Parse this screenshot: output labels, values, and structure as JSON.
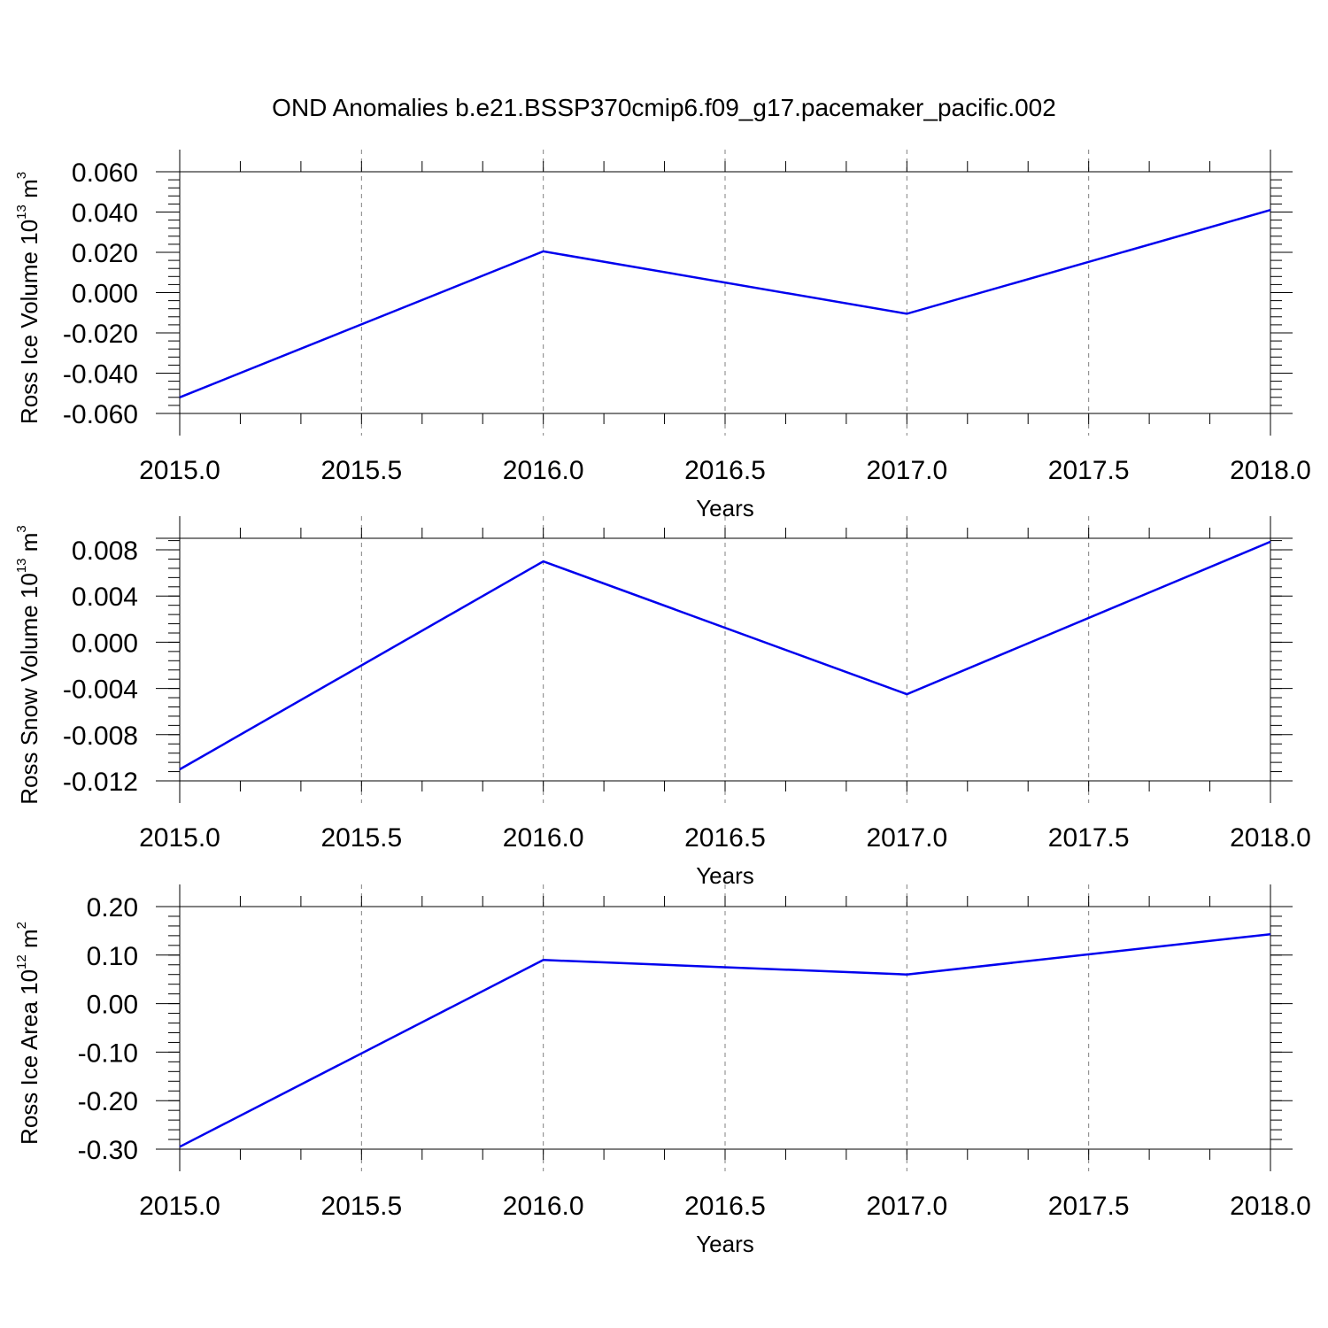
{
  "title": "OND Anomalies b.e21.BSSP370cmip6.f09_g17.pacemaker_pacific.002",
  "chart_data": [
    {
      "type": "line",
      "xlabel": "Years",
      "ylabel": "Ross Ice Volume 10",
      "ylabel_exp": "13",
      "ylabel_unit": " m",
      "ylabel_unit_exp": "3",
      "xlim": [
        2015.0,
        2018.0
      ],
      "ylim": [
        -0.06,
        0.06
      ],
      "grid": true,
      "xticks": [
        2015.0,
        2015.5,
        2016.0,
        2016.5,
        2017.0,
        2017.5,
        2018.0
      ],
      "xtick_labels": [
        "2015.0",
        "2015.5",
        "2016.0",
        "2016.5",
        "2017.0",
        "2017.5",
        "2018.0"
      ],
      "yticks": [
        0.06,
        0.04,
        0.02,
        0.0,
        -0.02,
        -0.04,
        -0.06
      ],
      "ytick_labels": [
        "0.060",
        "0.040",
        "0.020",
        "0.000",
        "-0.020",
        "-0.040",
        "-0.060"
      ],
      "series": [
        {
          "color": "#0000ee",
          "x": [
            2015,
            2016,
            2017,
            2018
          ],
          "y": [
            -0.052,
            0.0205,
            -0.0105,
            0.041
          ]
        }
      ]
    },
    {
      "type": "line",
      "xlabel": "Years",
      "ylabel": "Ross Snow Volume 10",
      "ylabel_exp": "13",
      "ylabel_unit": " m",
      "ylabel_unit_exp": "3",
      "xlim": [
        2015.0,
        2018.0
      ],
      "ylim": [
        -0.012,
        0.009
      ],
      "grid": true,
      "xticks": [
        2015.0,
        2015.5,
        2016.0,
        2016.5,
        2017.0,
        2017.5,
        2018.0
      ],
      "xtick_labels": [
        "2015.0",
        "2015.5",
        "2016.0",
        "2016.5",
        "2017.0",
        "2017.5",
        "2018.0"
      ],
      "yticks": [
        0.008,
        0.004,
        0.0,
        -0.004,
        -0.008,
        -0.012
      ],
      "ytick_labels": [
        "0.008",
        "0.004",
        "0.000",
        "-0.004",
        "-0.008",
        "-0.012"
      ],
      "series": [
        {
          "color": "#0000ee",
          "x": [
            2015,
            2016,
            2017,
            2018
          ],
          "y": [
            -0.011,
            0.007,
            -0.0045,
            0.0087
          ]
        }
      ]
    },
    {
      "type": "line",
      "xlabel": "Years",
      "ylabel": "Ross Ice Area 10",
      "ylabel_exp": "12",
      "ylabel_unit": " m",
      "ylabel_unit_exp": "2",
      "xlim": [
        2015.0,
        2018.0
      ],
      "ylim": [
        -0.3,
        0.2
      ],
      "grid": true,
      "xticks": [
        2015.0,
        2015.5,
        2016.0,
        2016.5,
        2017.0,
        2017.5,
        2018.0
      ],
      "xtick_labels": [
        "2015.0",
        "2015.5",
        "2016.0",
        "2016.5",
        "2017.0",
        "2017.5",
        "2018.0"
      ],
      "yticks": [
        0.2,
        0.1,
        0.0,
        -0.1,
        -0.2,
        -0.3
      ],
      "ytick_labels": [
        "0.20",
        "0.10",
        "0.00",
        "-0.10",
        "-0.20",
        "-0.30"
      ],
      "series": [
        {
          "color": "#0000ee",
          "x": [
            2015,
            2016,
            2017,
            2018
          ],
          "y": [
            -0.295,
            0.09,
            0.06,
            0.143
          ]
        }
      ]
    }
  ]
}
